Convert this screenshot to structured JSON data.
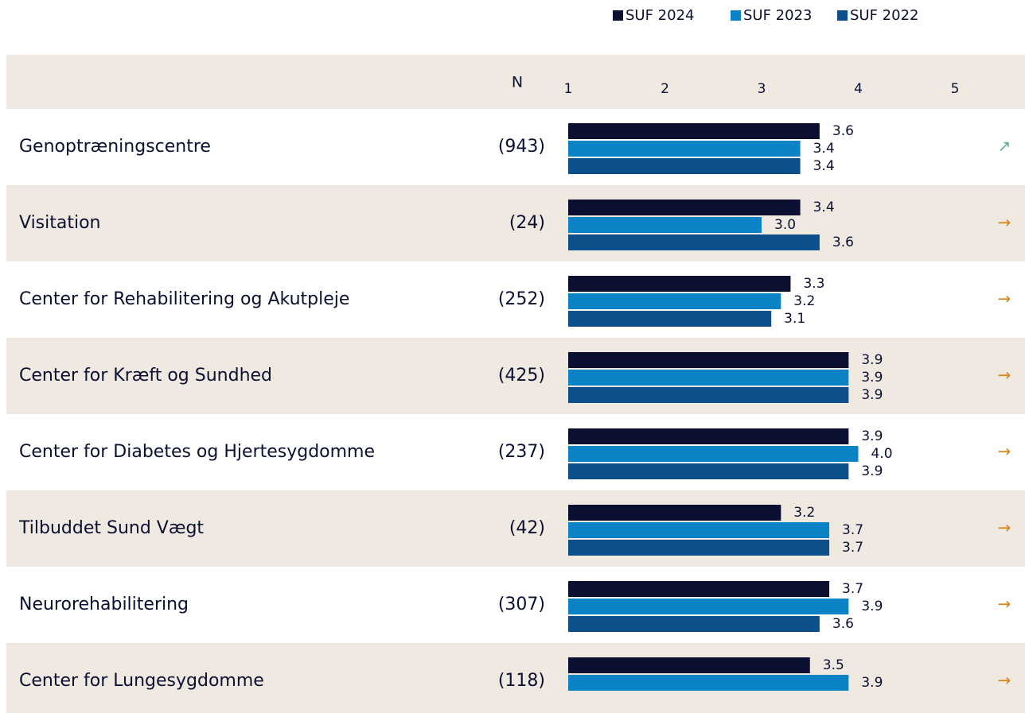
{
  "chart_data": {
    "type": "bar",
    "orientation": "horizontal",
    "n_header": "N",
    "categories": [
      "Genoptræningscentre",
      "Visitation",
      "Center for Rehabilitering og Akutpleje",
      "Center for Kræft og Sundhed",
      "Center for Diabetes og Hjertesygdomme",
      "Tilbuddet Sund Vægt",
      "Neurorehabilitering",
      "Center for Lungesygdomme"
    ],
    "n": [
      "(943)",
      "(24)",
      "(252)",
      "(425)",
      "(237)",
      "(42)",
      "(307)",
      "(118)"
    ],
    "trend": [
      "↗",
      "→",
      "→",
      "→",
      "→",
      "→",
      "→",
      "→"
    ],
    "trend_colors": [
      "#5fb08a",
      "#d4851a",
      "#d4851a",
      "#d4851a",
      "#d4851a",
      "#d4851a",
      "#d4851a",
      "#d4851a"
    ],
    "series": [
      {
        "name": "SUF 2024",
        "color": "#0b1033",
        "values": [
          3.6,
          3.4,
          3.3,
          3.9,
          3.9,
          3.2,
          3.7,
          3.5
        ],
        "value_labels": [
          "3.6",
          "3.4",
          "3.3",
          "3.9",
          "3.9",
          "3.2",
          "3.7",
          "3.5"
        ]
      },
      {
        "name": "SUF 2023",
        "color": "#0a82c6",
        "values": [
          3.4,
          3.0,
          3.2,
          3.9,
          4.0,
          3.7,
          3.9,
          3.9
        ],
        "value_labels": [
          "3.4",
          "3.0",
          "3.2",
          "3.9",
          "4.0",
          "3.7",
          "3.9",
          "3.9"
        ]
      },
      {
        "name": "SUF 2022",
        "color": "#0d4f8b",
        "values": [
          3.4,
          3.6,
          3.1,
          3.9,
          3.9,
          3.7,
          3.6,
          null
        ],
        "value_labels": [
          "3.4",
          "3.6",
          "3.1",
          "3.9",
          "3.9",
          "3.7",
          "3.6",
          null
        ]
      }
    ],
    "xlim": [
      1,
      5
    ],
    "xticks": [
      1,
      2,
      3,
      4,
      5
    ],
    "grid": false,
    "legend": "top-right"
  }
}
